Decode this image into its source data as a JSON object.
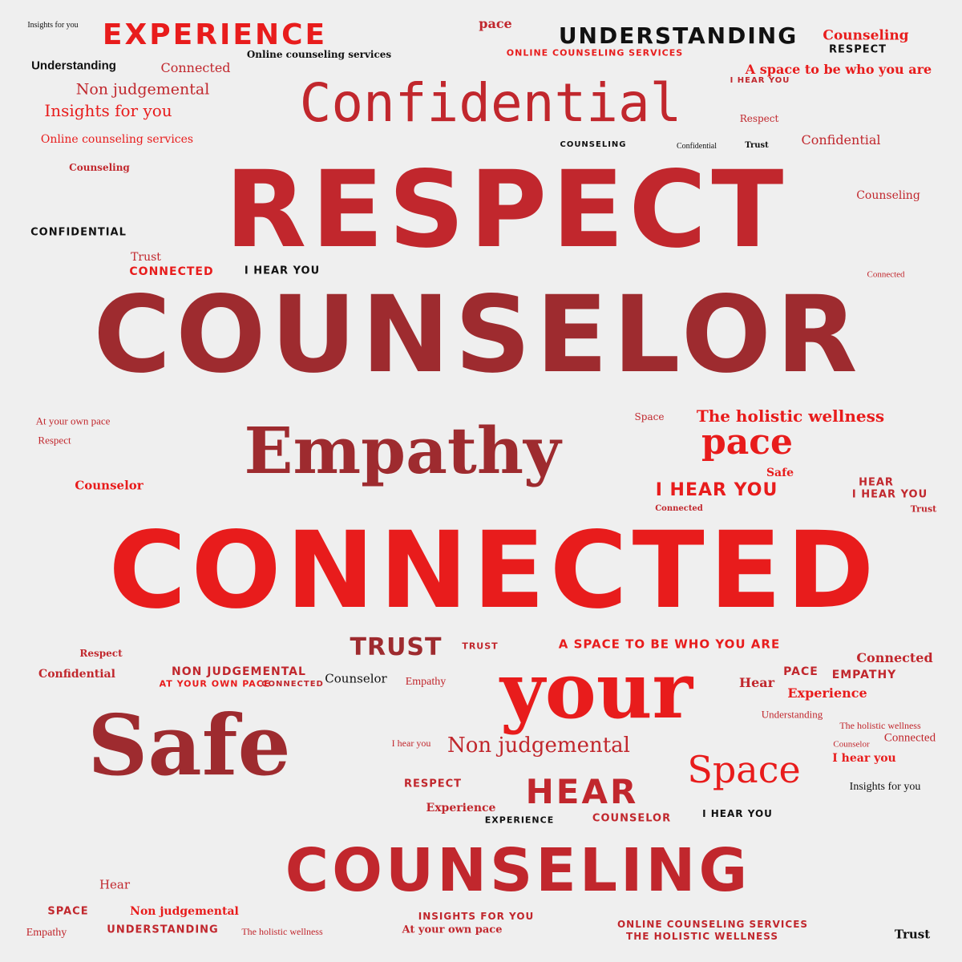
{
  "palette": {
    "background": "#efefef",
    "bright_red": "#e81c1c",
    "crimson": "#c1272d",
    "dark_red": "#9e2b2f",
    "black": "#111111"
  },
  "words": [
    {
      "text": "RESPECT",
      "color": "crimson"
    },
    {
      "text": "COUNSELOR",
      "color": "dark_red"
    },
    {
      "text": "CONNECTED",
      "color": "bright_red"
    },
    {
      "text": "Safe",
      "color": "dark_red"
    },
    {
      "text": "Empathy",
      "color": "dark_red"
    },
    {
      "text": "your",
      "color": "bright_red"
    },
    {
      "text": "COUNSELING",
      "color": "crimson"
    },
    {
      "text": "Confidential",
      "color": "crimson"
    },
    {
      "text": "EXPERIENCE",
      "color": "bright_red"
    },
    {
      "text": "UNDERSTANDING",
      "color": "black"
    },
    {
      "text": "pace",
      "color": "bright_red"
    },
    {
      "text": "Space",
      "color": "bright_red"
    },
    {
      "text": "HEAR",
      "color": "crimson"
    },
    {
      "text": "TRUST",
      "color": "dark_red"
    },
    {
      "text": "The holistic wellness",
      "color": "bright_red"
    },
    {
      "text": "I HEAR YOU",
      "color": "bright_red"
    },
    {
      "text": "A space to be who you are",
      "color": "bright_red"
    },
    {
      "text": "Non judgemental",
      "color": "crimson"
    },
    {
      "text": "Non judgemental",
      "color": "crimson"
    },
    {
      "text": "Insights for you",
      "color": "bright_red"
    },
    {
      "text": "Online counseling services",
      "color": "bright_red"
    },
    {
      "text": "Understanding",
      "color": "black"
    },
    {
      "text": "Confidential",
      "color": "crimson"
    },
    {
      "text": "Counseling",
      "color": "bright_red"
    },
    {
      "text": "RESPECT",
      "color": "black"
    },
    {
      "text": "ONLINE COUNSELING SERVICES",
      "color": "bright_red"
    },
    {
      "text": "Online counseling services",
      "color": "black"
    },
    {
      "text": "A SPACE TO BE WHO YOU ARE",
      "color": "bright_red"
    },
    {
      "text": "NON JUDGEMENTAL",
      "color": "crimson"
    },
    {
      "text": "AT YOUR OWN PACE",
      "color": "bright_red"
    },
    {
      "text": "Counselor",
      "color": "bright_red"
    },
    {
      "text": "Experience",
      "color": "bright_red"
    },
    {
      "text": "Connected",
      "color": "crimson"
    },
    {
      "text": "Confidential",
      "color": "crimson"
    },
    {
      "text": "Counselor",
      "color": "black"
    },
    {
      "text": "EMPATHY",
      "color": "crimson"
    },
    {
      "text": "PACE",
      "color": "crimson"
    },
    {
      "text": "Hear",
      "color": "crimson"
    },
    {
      "text": "I hear you",
      "color": "bright_red"
    },
    {
      "text": "I HEAR YOU",
      "color": "black"
    },
    {
      "text": "CONNECTED",
      "color": "bright_red"
    },
    {
      "text": "COUNSELOR",
      "color": "crimson"
    },
    {
      "text": "I HEAR YOU",
      "color": "black"
    },
    {
      "text": "EXPERIENCE",
      "color": "black"
    },
    {
      "text": "SPACE",
      "color": "crimson"
    },
    {
      "text": "UNDERSTANDING",
      "color": "crimson"
    },
    {
      "text": "INSIGHTS FOR YOU",
      "color": "crimson"
    },
    {
      "text": "At your own pace",
      "color": "crimson"
    },
    {
      "text": "ONLINE COUNSELING SERVICES",
      "color": "crimson"
    },
    {
      "text": "THE HOLISTIC WELLNESS",
      "color": "crimson"
    },
    {
      "text": "Non judgemental",
      "color": "bright_red"
    },
    {
      "text": "The holistic wellness",
      "color": "crimson"
    },
    {
      "text": "Insights for you",
      "color": "black"
    },
    {
      "text": "Understanding",
      "color": "crimson"
    },
    {
      "text": "The holistic wellness",
      "color": "crimson"
    },
    {
      "text": "Trust",
      "color": "black"
    },
    {
      "text": "Empathy",
      "color": "crimson"
    },
    {
      "text": "CONFIDENTIAL",
      "color": "black"
    },
    {
      "text": "Counseling",
      "color": "crimson"
    },
    {
      "text": "Trust",
      "color": "crimson"
    },
    {
      "text": "CONNECTED",
      "color": "crimson"
    },
    {
      "text": "Hear",
      "color": "crimson"
    },
    {
      "text": "Space",
      "color": "crimson"
    },
    {
      "text": "At your own pace",
      "color": "crimson"
    },
    {
      "text": "Respect",
      "color": "crimson"
    },
    {
      "text": "Empathy",
      "color": "crimson"
    },
    {
      "text": "Respect",
      "color": "crimson"
    },
    {
      "text": "Counseling",
      "color": "crimson"
    },
    {
      "text": "Connected",
      "color": "crimson"
    },
    {
      "text": "Insights for you",
      "color": "black"
    },
    {
      "text": "I HEAR YOU",
      "color": "crimson"
    },
    {
      "text": "Safe",
      "color": "bright_red"
    },
    {
      "text": "Counselor",
      "color": "crimson"
    },
    {
      "text": "Connected",
      "color": "crimson"
    },
    {
      "text": "Experience",
      "color": "crimson"
    },
    {
      "text": "Connected",
      "color": "crimson"
    },
    {
      "text": "Connected",
      "color": "crimson"
    },
    {
      "text": "HEAR",
      "color": "crimson"
    },
    {
      "text": "I HEAR YOU",
      "color": "crimson"
    },
    {
      "text": "Trust",
      "color": "crimson"
    },
    {
      "text": "RESPECT",
      "color": "crimson"
    },
    {
      "text": "TRUST",
      "color": "crimson"
    },
    {
      "text": "pace",
      "color": "crimson"
    },
    {
      "text": "Trust",
      "color": "black"
    },
    {
      "text": "Respect",
      "color": "crimson"
    },
    {
      "text": "COUNSELING",
      "color": "black"
    },
    {
      "text": "Confidential",
      "color": "black"
    },
    {
      "text": "I hear you",
      "color": "crimson"
    }
  ]
}
